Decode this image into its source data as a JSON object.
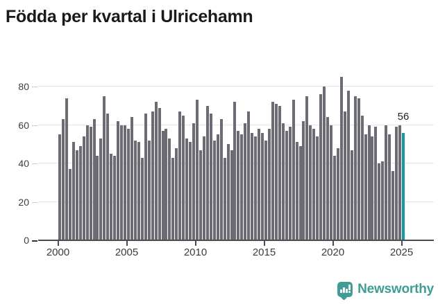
{
  "header": {
    "title": "Födda per kvartal i Ulricehamn"
  },
  "annotation": {
    "last_value_label": "56"
  },
  "footer": {
    "brand": "Newsworthy",
    "brand_color": "#3f9d96"
  },
  "colors": {
    "bar": "#6b6b74",
    "highlight": "#14999e",
    "grid": "#e4e4e4",
    "axis": "#4a4a50",
    "title_text": "#1a1a1a"
  },
  "chart_data": {
    "type": "bar",
    "title": "Födda per kvartal i Ulricehamn",
    "xlabel": "",
    "ylabel": "",
    "start": {
      "year": 2000,
      "quarter": 1
    },
    "end": {
      "year": 2025,
      "quarter": 1
    },
    "x_tick_labels": [
      "2000",
      "2005",
      "2010",
      "2015",
      "2020",
      "2025"
    ],
    "y_tick_labels": [
      0,
      20,
      40,
      60,
      80
    ],
    "ylim": [
      0,
      87
    ],
    "grid": "horizontal",
    "legend": "none",
    "highlight_last_bar": true,
    "last_bar_label": "56",
    "values": [
      55,
      63,
      74,
      37,
      51,
      47,
      49,
      54,
      60,
      59,
      63,
      44,
      53,
      75,
      66,
      45,
      44,
      62,
      60,
      60,
      58,
      64,
      52,
      51,
      43,
      66,
      52,
      67,
      72,
      69,
      57,
      58,
      53,
      43,
      48,
      67,
      65,
      53,
      51,
      61,
      73,
      47,
      54,
      70,
      66,
      52,
      55,
      63,
      43,
      50,
      47,
      72,
      57,
      55,
      61,
      67,
      56,
      54,
      58,
      56,
      52,
      58,
      72,
      71,
      70,
      61,
      57,
      59,
      73,
      51,
      49,
      62,
      75,
      60,
      58,
      54,
      76,
      80,
      64,
      60,
      44,
      48,
      85,
      67,
      78,
      47,
      75,
      74,
      65,
      55,
      60,
      54,
      59,
      40,
      41,
      60,
      55,
      36,
      59,
      60,
      56
    ]
  }
}
